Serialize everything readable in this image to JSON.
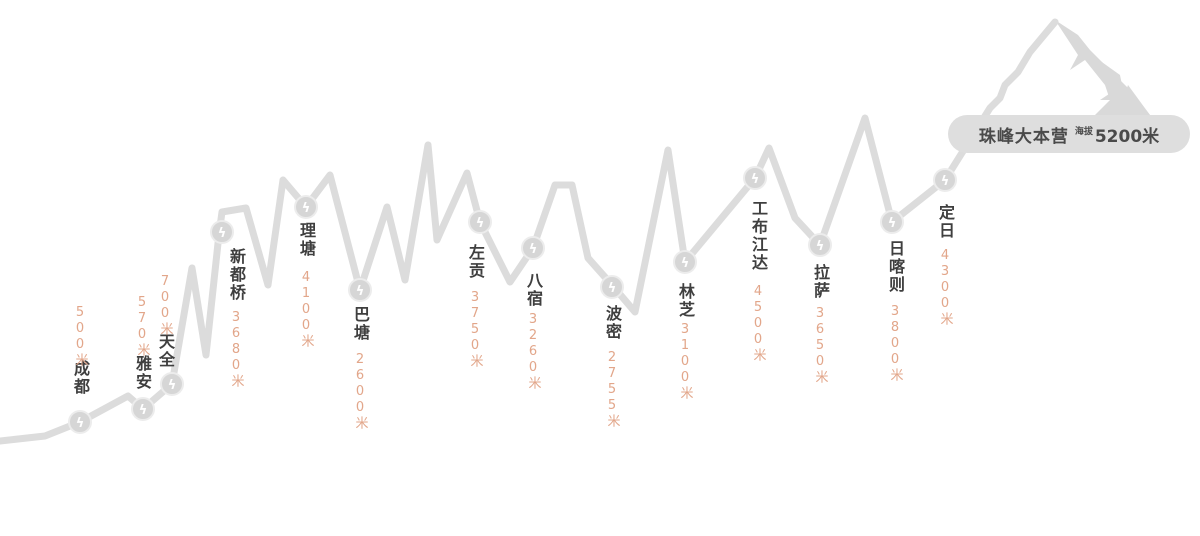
{
  "colors": {
    "line": "#dcdcdc",
    "marker": "#d6d6d6",
    "name": "#3f3f3f",
    "elevation": "#e2a68a",
    "badge": "#dedede"
  },
  "marker_icon": "lightning-icon",
  "stops": [
    {
      "name": "成都",
      "elevation": "500米"
    },
    {
      "name": "雅安",
      "elevation": "570米"
    },
    {
      "name": "天全",
      "elevation": "700米"
    },
    {
      "name": "新都桥",
      "elevation": "3680米"
    },
    {
      "name": "理塘",
      "elevation": "4100米"
    },
    {
      "name": "巴塘",
      "elevation": "2600米"
    },
    {
      "name": "左贡",
      "elevation": "3750米"
    },
    {
      "name": "八宿",
      "elevation": "3260米"
    },
    {
      "name": "波密",
      "elevation": "2755米"
    },
    {
      "name": "林芝",
      "elevation": "3100米"
    },
    {
      "name": "工布江达",
      "elevation": "4500米"
    },
    {
      "name": "拉萨",
      "elevation": "3650米"
    },
    {
      "name": "日喀则",
      "elevation": "3800米"
    },
    {
      "name": "定日",
      "elevation": "4300米"
    }
  ],
  "destination": {
    "name": "珠峰大本营",
    "altitude_label": "海拔",
    "elevation": "5200米"
  }
}
